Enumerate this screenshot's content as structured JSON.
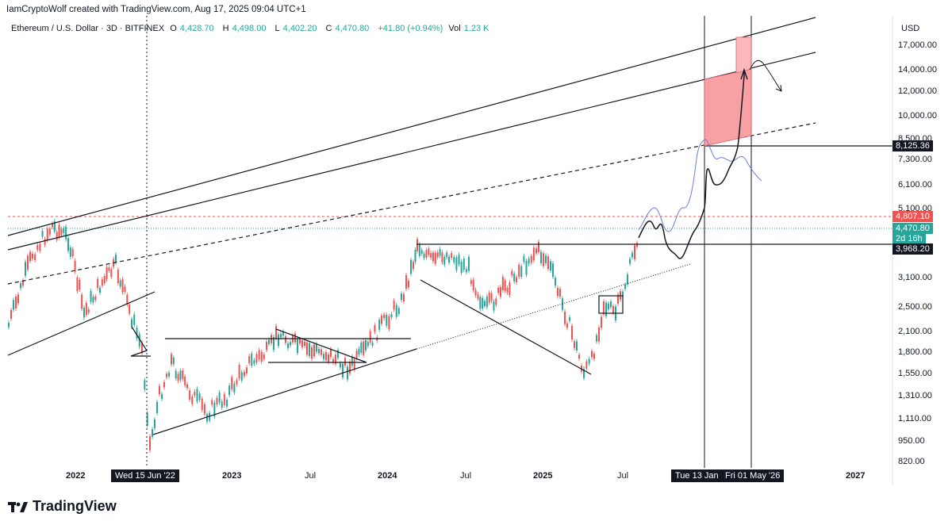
{
  "header": {
    "credit": "IamCryptoWolf created with TradingView.com, Aug 17, 2025 09:04 UTC+1",
    "symbol": "Ethereum / U.S. Dollar · 3D · BITFINEX",
    "open_label": "O",
    "open": "4,428.70",
    "high_label": "H",
    "high": "4,498.00",
    "low_label": "L",
    "low": "4,402.20",
    "close_label": "C",
    "close": "4,470.80",
    "change": "+41.80 (+0.94%)",
    "vol_label": "Vol",
    "vol": "1.23 K"
  },
  "axis": {
    "currency": "USD",
    "price_ticks": [
      "17,000.00",
      "14,000.00",
      "12,000.00",
      "10,000.00",
      "8,500.00",
      "7,300.00",
      "6,100.00",
      "5,100.00",
      "3,100.00",
      "2,500.00",
      "2,100.00",
      "1,800.00",
      "1,550.00",
      "1,310.00",
      "1,110.00",
      "950.00",
      "820.00"
    ],
    "date_ticks": [
      "2022",
      "2023",
      "Jul",
      "2024",
      "Jul",
      "2025",
      "Jul",
      "2027"
    ],
    "date_labels": [
      "Wed 15 Jun '22",
      "Tue 13 Jan",
      "Fri 01 May '26"
    ]
  },
  "badges": {
    "level_high": "8,125.36",
    "level_red": "4,807.10",
    "current_price": "4,470.80",
    "countdown": "2d 16h",
    "level_support": "3,968.20"
  },
  "colors": {
    "up": "#26a69a",
    "down": "#ef5350",
    "target_zone": "#f7a1a5",
    "forecast_line": "#6b7fd7"
  },
  "footer": {
    "brand": "TradingView"
  }
}
